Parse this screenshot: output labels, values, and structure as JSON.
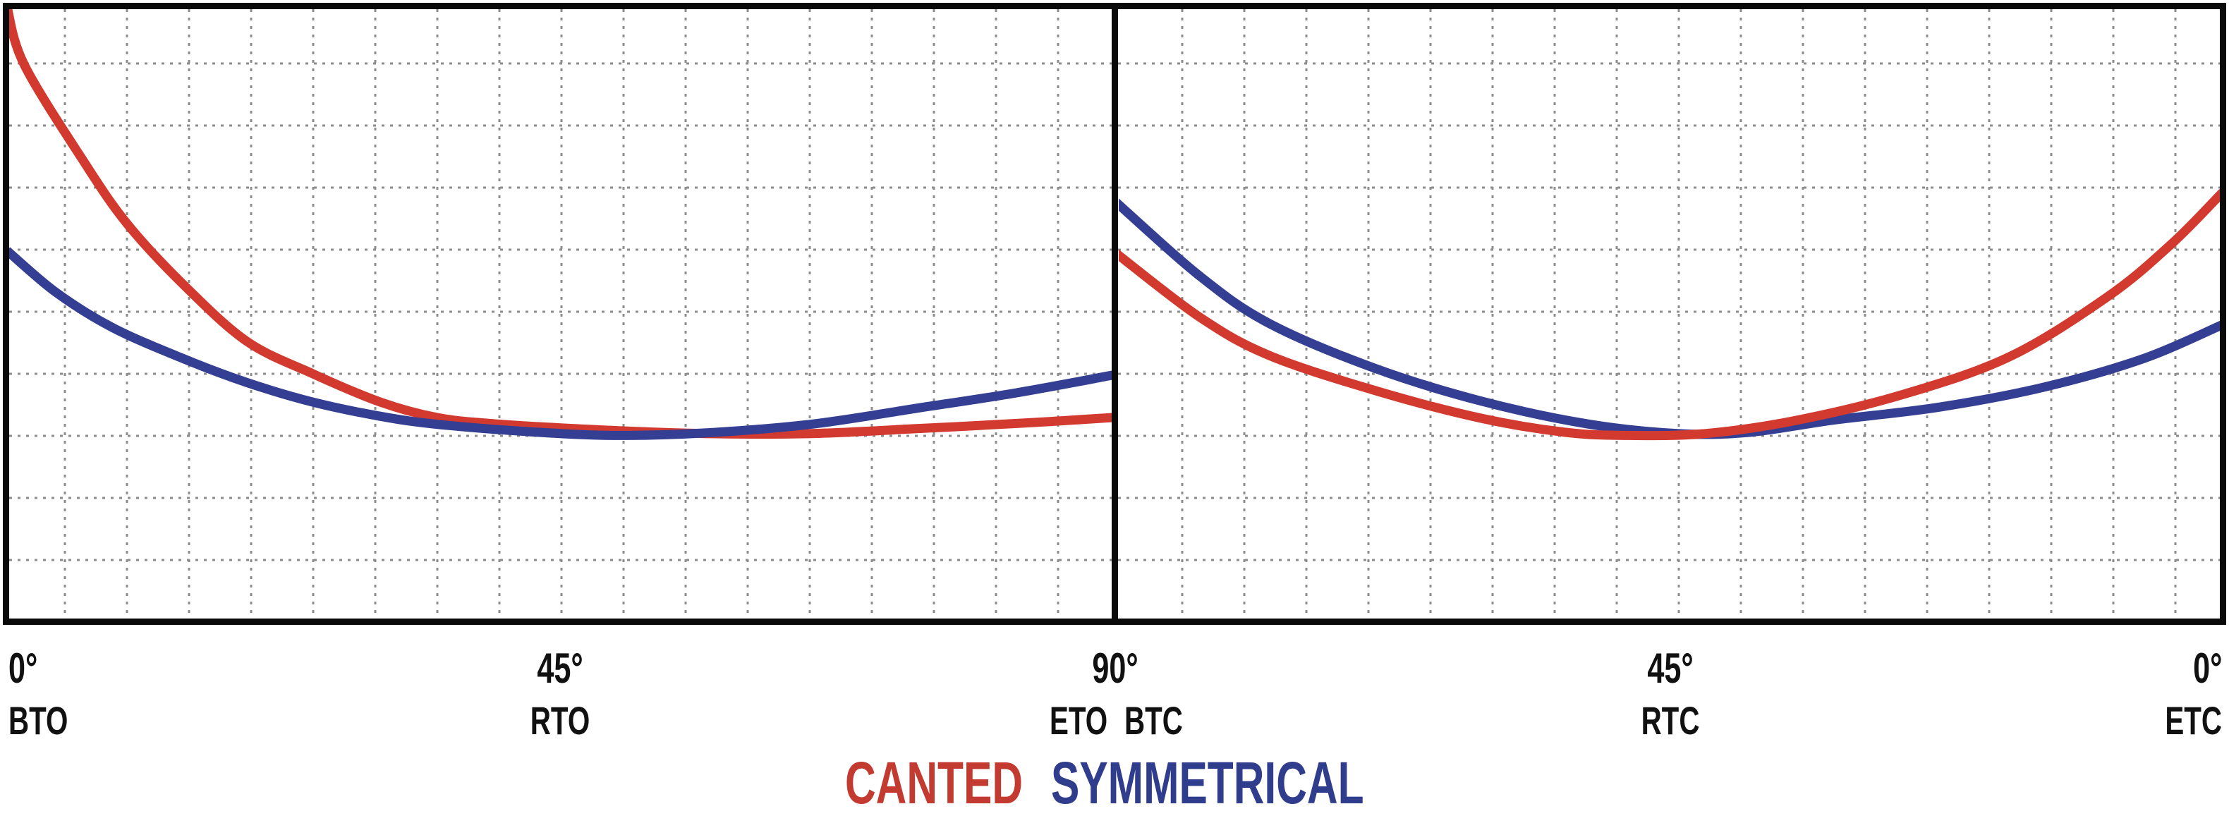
{
  "colors": {
    "canted": "#D23A30",
    "symmetrical": "#343E92",
    "legend_canted": "#C23A30",
    "legend_symmetrical": "#2F3D8C",
    "grid": "#8C8C8C",
    "frame": "#0A0A0A"
  },
  "legend": [
    {
      "label": "CANTED",
      "color": "#C23A30"
    },
    {
      "label": "SYMMETRICAL",
      "color": "#2F3D8C"
    }
  ],
  "chart_data": [
    {
      "type": "line",
      "panel": "left",
      "x_range_deg": [
        0,
        90
      ],
      "x_reversed": false,
      "grid": "dotted",
      "y_axis": "unlabeled; values normalized 0-1 of plot height above bottom axis",
      "x_ticks": [
        {
          "deg": "0°",
          "name": "BTO"
        },
        {
          "deg": "45°",
          "name": "RTO"
        },
        {
          "deg": "90°",
          "name": "ETO"
        }
      ],
      "series": [
        {
          "name": "CANTED",
          "key": "canted",
          "color": "#D23A30",
          "points": [
            [
              0,
              0.998
            ],
            [
              1.4,
              0.904
            ],
            [
              6.3,
              0.745
            ],
            [
              9.8,
              0.645
            ],
            [
              14.3,
              0.548
            ],
            [
              19.5,
              0.455
            ],
            [
              24.9,
              0.402
            ],
            [
              30.4,
              0.356
            ],
            [
              35.0,
              0.331
            ],
            [
              39.6,
              0.321
            ],
            [
              48.2,
              0.311
            ],
            [
              56.8,
              0.305
            ],
            [
              65.4,
              0.305
            ],
            [
              74.0,
              0.313
            ],
            [
              82.7,
              0.322
            ],
            [
              90,
              0.331
            ]
          ]
        },
        {
          "name": "SYMMETRICAL",
          "key": "symmetrical",
          "color": "#343E92",
          "points": [
            [
              0,
              0.602
            ],
            [
              4.0,
              0.534
            ],
            [
              8.6,
              0.477
            ],
            [
              14.3,
              0.427
            ],
            [
              19.5,
              0.388
            ],
            [
              24.9,
              0.356
            ],
            [
              30.4,
              0.333
            ],
            [
              35.0,
              0.32
            ],
            [
              42.5,
              0.308
            ],
            [
              49.4,
              0.302
            ],
            [
              56.8,
              0.306
            ],
            [
              65.4,
              0.32
            ],
            [
              74.0,
              0.346
            ],
            [
              82.1,
              0.371
            ],
            [
              90,
              0.4
            ]
          ]
        }
      ]
    },
    {
      "type": "line",
      "panel": "right",
      "x_range_deg": [
        90,
        0
      ],
      "x_reversed": true,
      "grid": "dotted",
      "y_axis": "unlabeled; values normalized 0-1 of plot height above bottom axis",
      "x_ticks": [
        {
          "deg": "90°",
          "name": "BTC"
        },
        {
          "deg": "45°",
          "name": "RTC"
        },
        {
          "deg": "0°",
          "name": "ETC"
        }
      ],
      "series": [
        {
          "name": "SYMMETRICAL",
          "key": "symmetrical",
          "color": "#343E92",
          "points": [
            [
              90,
              0.682
            ],
            [
              83.2,
              0.562
            ],
            [
              77.5,
              0.484
            ],
            [
              68.9,
              0.411
            ],
            [
              60.3,
              0.358
            ],
            [
              51.7,
              0.321
            ],
            [
              44.3,
              0.305
            ],
            [
              38.5,
              0.307
            ],
            [
              31.6,
              0.327
            ],
            [
              23.0,
              0.348
            ],
            [
              14.4,
              0.381
            ],
            [
              6.4,
              0.427
            ],
            [
              0,
              0.482
            ]
          ]
        },
        {
          "name": "CANTED",
          "key": "canted",
          "color": "#D23A30",
          "points": [
            [
              90,
              0.599
            ],
            [
              83.2,
              0.495
            ],
            [
              77.5,
              0.432
            ],
            [
              68.9,
              0.375
            ],
            [
              60.3,
              0.33
            ],
            [
              53.4,
              0.307
            ],
            [
              48.3,
              0.302
            ],
            [
              42.0,
              0.305
            ],
            [
              34.5,
              0.327
            ],
            [
              25.9,
              0.369
            ],
            [
              17.3,
              0.43
            ],
            [
              9.3,
              0.528
            ],
            [
              4.1,
              0.614
            ],
            [
              0,
              0.697
            ]
          ]
        }
      ]
    }
  ]
}
